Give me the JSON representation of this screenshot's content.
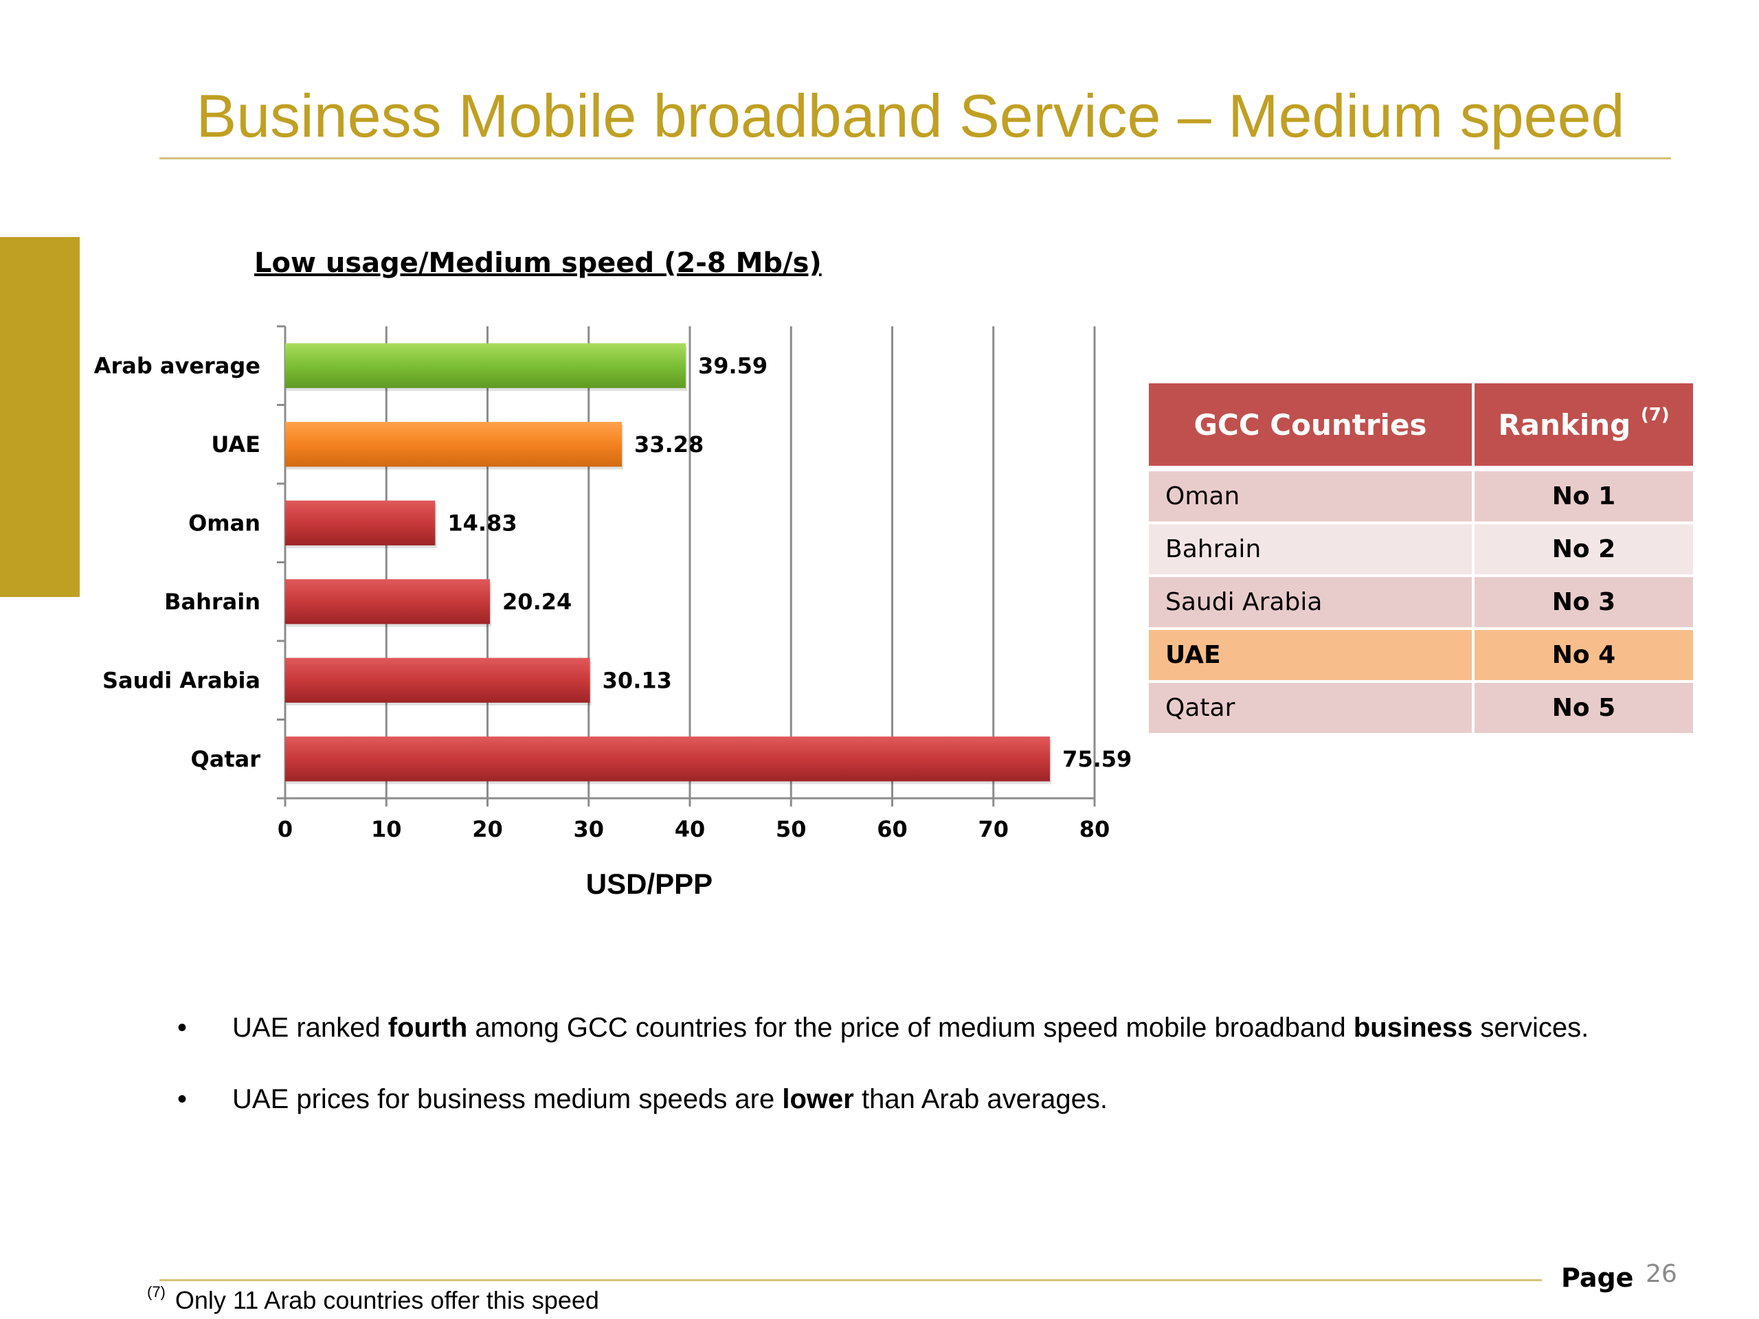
{
  "slide": {
    "title": "Business Mobile broadband Service – Medium speed",
    "page_label": "Page",
    "page_number": "26"
  },
  "chart_data": {
    "type": "bar",
    "orientation": "horizontal",
    "title": "Low usage/Medium speed (2-8 Mb/s)",
    "xlabel": "USD/PPP",
    "ylabel": "",
    "categories": [
      "Arab average",
      "UAE",
      "Oman",
      "Bahrain",
      "Saudi Arabia",
      "Qatar"
    ],
    "values": [
      39.59,
      33.28,
      14.83,
      20.24,
      30.13,
      75.59
    ],
    "value_labels": [
      "39.59",
      "33.28",
      "14.83",
      "20.24",
      "30.13",
      "75.59"
    ],
    "bar_colors": [
      "#8cc63f",
      "#f58220",
      "#c0393b",
      "#c0393b",
      "#c0393b",
      "#c0393b"
    ],
    "xlim": [
      0,
      80
    ],
    "xticks": [
      "0",
      "10",
      "20",
      "30",
      "40",
      "50",
      "60",
      "70",
      "80"
    ],
    "grid": "vertical"
  },
  "table": {
    "headers": {
      "country": "GCC Countries",
      "ranking": "Ranking",
      "ranking_note": "(7)"
    },
    "rows": [
      {
        "country": "Oman",
        "rank": "No 1"
      },
      {
        "country": "Bahrain",
        "rank": "No 2"
      },
      {
        "country": "Saudi Arabia",
        "rank": "No 3"
      },
      {
        "country": "UAE",
        "rank": "No 4"
      },
      {
        "country": "Qatar",
        "rank": "No 5"
      }
    ],
    "highlight_color": "#f7be8c"
  },
  "bullets": [
    {
      "a": "UAE ranked ",
      "b": "fourth",
      "c": " among GCC countries for the price of medium speed mobile broadband ",
      "d": "business",
      "e": " services."
    },
    {
      "a": "UAE prices for business medium speeds are ",
      "b": "lower",
      "c": " than Arab averages."
    }
  ],
  "bullet_symbol": "•",
  "footnote": {
    "marker": "(7)",
    "text": "Only 11 Arab countries offer this speed"
  },
  "colors": {
    "accent_gold": "#c0a023",
    "table_header": "#c0504d"
  }
}
